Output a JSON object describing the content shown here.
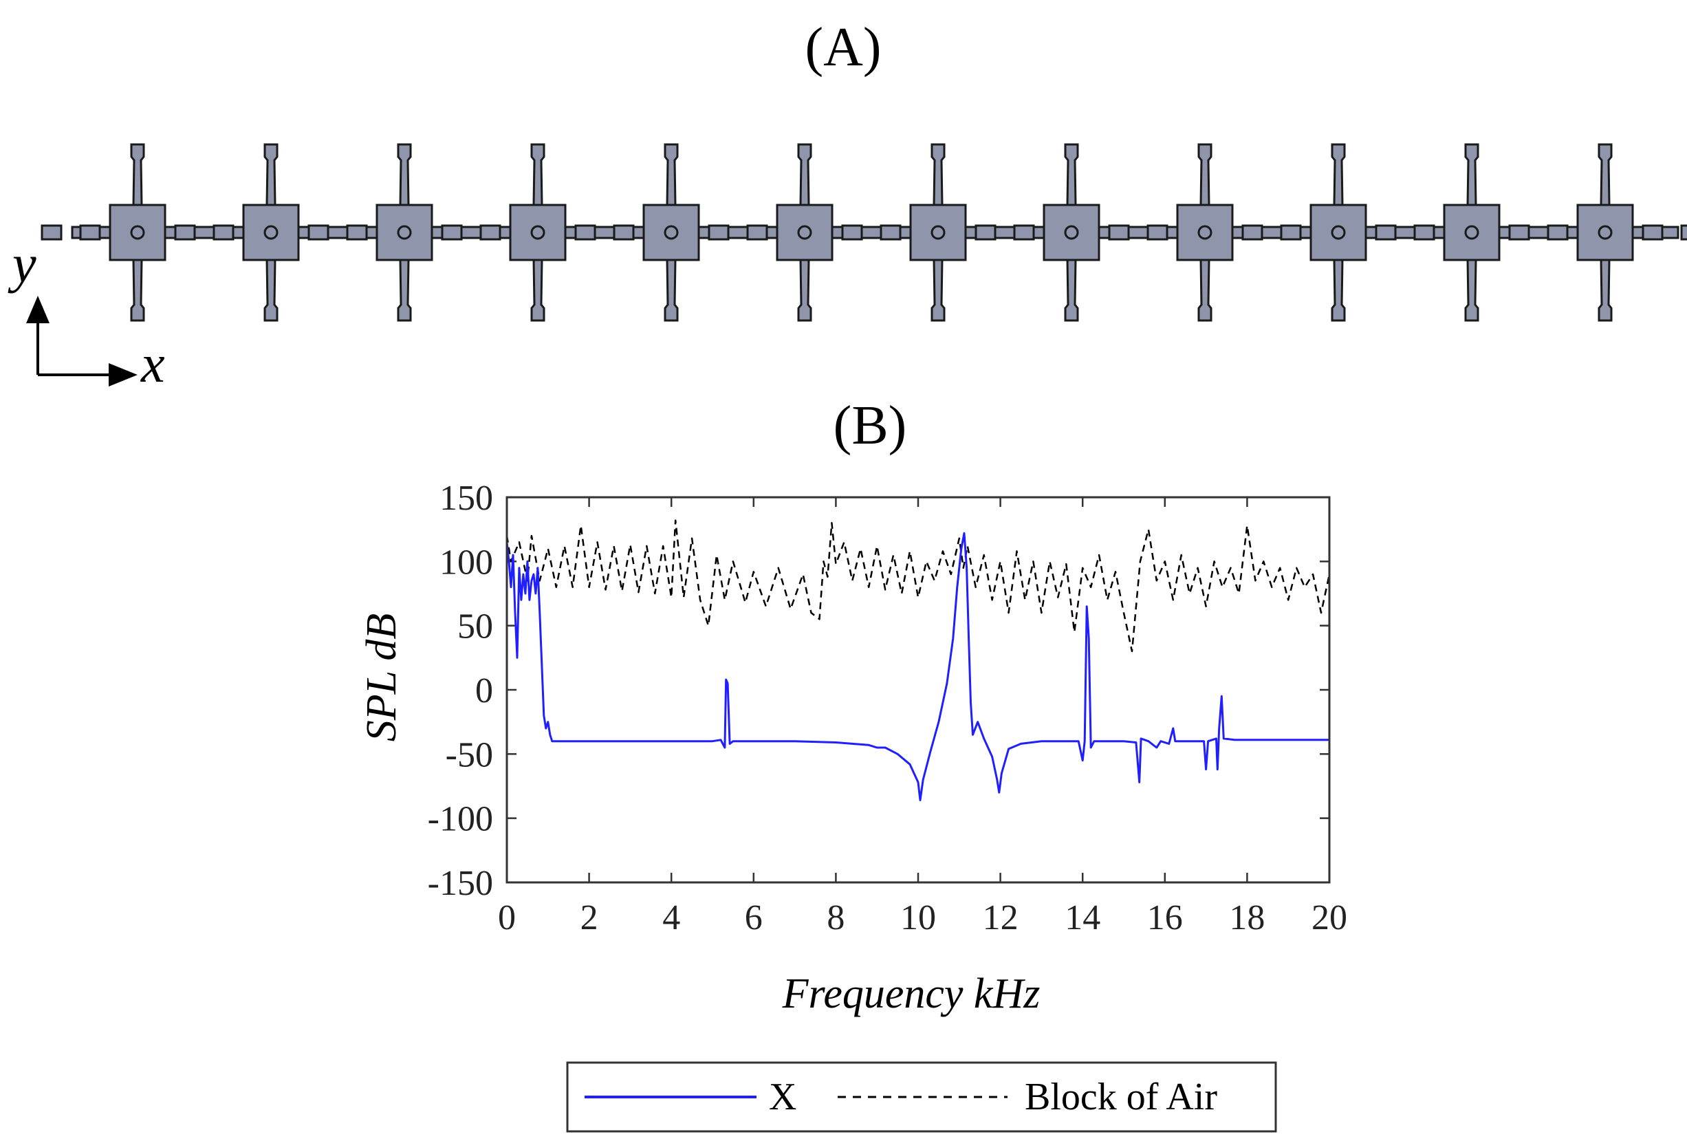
{
  "panel_a": {
    "label": "(A)",
    "cell_count": 12,
    "axis_y_label": "y",
    "axis_x_label": "x",
    "cell_fill": "#8f95aa",
    "cell_stroke": "#1a1a1a"
  },
  "chart_data": {
    "type": "line",
    "panel_label": "(B)",
    "xlabel": "Frequency kHz",
    "ylabel": "SPL dB",
    "xlim": [
      0,
      20
    ],
    "ylim": [
      -150,
      150
    ],
    "xticks": [
      0,
      2,
      4,
      6,
      8,
      10,
      12,
      14,
      16,
      18,
      20
    ],
    "yticks": [
      150,
      100,
      50,
      0,
      -50,
      -100,
      -150
    ],
    "grid": false,
    "legend_position": "bottom-center",
    "series": [
      {
        "name": "X",
        "color": "#1f1fff",
        "style": "solid",
        "points": [
          [
            0.0,
            115
          ],
          [
            0.05,
            100
          ],
          [
            0.1,
            80
          ],
          [
            0.15,
            105
          ],
          [
            0.2,
            60
          ],
          [
            0.25,
            25
          ],
          [
            0.3,
            95
          ],
          [
            0.35,
            70
          ],
          [
            0.4,
            90
          ],
          [
            0.45,
            75
          ],
          [
            0.5,
            100
          ],
          [
            0.55,
            70
          ],
          [
            0.6,
            85
          ],
          [
            0.65,
            90
          ],
          [
            0.7,
            75
          ],
          [
            0.75,
            95
          ],
          [
            0.8,
            60
          ],
          [
            0.85,
            20
          ],
          [
            0.9,
            -20
          ],
          [
            0.95,
            -30
          ],
          [
            1.0,
            -25
          ],
          [
            1.05,
            -35
          ],
          [
            1.1,
            -40
          ],
          [
            1.5,
            -40
          ],
          [
            2.0,
            -40
          ],
          [
            3.0,
            -40
          ],
          [
            4.0,
            -40
          ],
          [
            5.0,
            -40
          ],
          [
            5.2,
            -39
          ],
          [
            5.3,
            -45
          ],
          [
            5.33,
            8
          ],
          [
            5.37,
            5
          ],
          [
            5.42,
            -42
          ],
          [
            5.5,
            -40
          ],
          [
            6.0,
            -40
          ],
          [
            7.0,
            -40
          ],
          [
            8.0,
            -41
          ],
          [
            8.8,
            -43
          ],
          [
            9.0,
            -45
          ],
          [
            9.2,
            -45
          ],
          [
            9.5,
            -50
          ],
          [
            9.8,
            -58
          ],
          [
            10.0,
            -72
          ],
          [
            10.05,
            -86
          ],
          [
            10.12,
            -70
          ],
          [
            10.3,
            -48
          ],
          [
            10.5,
            -25
          ],
          [
            10.7,
            5
          ],
          [
            10.85,
            40
          ],
          [
            10.95,
            80
          ],
          [
            11.05,
            110
          ],
          [
            11.12,
            122
          ],
          [
            11.18,
            95
          ],
          [
            11.23,
            40
          ],
          [
            11.28,
            -10
          ],
          [
            11.33,
            -35
          ],
          [
            11.45,
            -25
          ],
          [
            11.6,
            -38
          ],
          [
            11.8,
            -52
          ],
          [
            11.92,
            -70
          ],
          [
            11.97,
            -80
          ],
          [
            12.03,
            -65
          ],
          [
            12.2,
            -46
          ],
          [
            12.5,
            -42
          ],
          [
            13.0,
            -40
          ],
          [
            13.5,
            -40
          ],
          [
            13.9,
            -40
          ],
          [
            14.0,
            -55
          ],
          [
            14.05,
            -40
          ],
          [
            14.1,
            65
          ],
          [
            14.15,
            40
          ],
          [
            14.2,
            -45
          ],
          [
            14.28,
            -40
          ],
          [
            15.0,
            -40
          ],
          [
            15.3,
            -41
          ],
          [
            15.38,
            -72
          ],
          [
            15.42,
            -38
          ],
          [
            15.6,
            -40
          ],
          [
            15.8,
            -45
          ],
          [
            15.9,
            -40
          ],
          [
            16.1,
            -42
          ],
          [
            16.2,
            -30
          ],
          [
            16.25,
            -40
          ],
          [
            16.5,
            -40
          ],
          [
            16.95,
            -40
          ],
          [
            17.0,
            -62
          ],
          [
            17.05,
            -40
          ],
          [
            17.25,
            -38
          ],
          [
            17.28,
            -62
          ],
          [
            17.32,
            -30
          ],
          [
            17.38,
            -5
          ],
          [
            17.43,
            -38
          ],
          [
            17.7,
            -39
          ],
          [
            18.5,
            -39
          ],
          [
            19.5,
            -39
          ],
          [
            20.0,
            -39
          ]
        ]
      },
      {
        "name": "Block of Air",
        "color": "#000000",
        "style": "dashed",
        "points": [
          [
            0.0,
            120
          ],
          [
            0.1,
            100
          ],
          [
            0.3,
            115
          ],
          [
            0.5,
            85
          ],
          [
            0.6,
            120
          ],
          [
            0.8,
            85
          ],
          [
            1.0,
            110
          ],
          [
            1.2,
            80
          ],
          [
            1.4,
            112
          ],
          [
            1.6,
            80
          ],
          [
            1.8,
            128
          ],
          [
            2.0,
            80
          ],
          [
            2.2,
            115
          ],
          [
            2.4,
            78
          ],
          [
            2.6,
            112
          ],
          [
            2.8,
            77
          ],
          [
            3.0,
            113
          ],
          [
            3.2,
            76
          ],
          [
            3.4,
            112
          ],
          [
            3.6,
            75
          ],
          [
            3.8,
            112
          ],
          [
            4.0,
            72
          ],
          [
            4.1,
            132
          ],
          [
            4.3,
            72
          ],
          [
            4.5,
            118
          ],
          [
            4.7,
            70
          ],
          [
            4.9,
            50
          ],
          [
            5.1,
            105
          ],
          [
            5.3,
            70
          ],
          [
            5.5,
            100
          ],
          [
            5.8,
            68
          ],
          [
            6.0,
            92
          ],
          [
            6.3,
            65
          ],
          [
            6.6,
            95
          ],
          [
            6.9,
            63
          ],
          [
            7.2,
            90
          ],
          [
            7.4,
            60
          ],
          [
            7.6,
            55
          ],
          [
            7.7,
            100
          ],
          [
            7.8,
            88
          ],
          [
            7.9,
            130
          ],
          [
            8.0,
            98
          ],
          [
            8.2,
            115
          ],
          [
            8.4,
            85
          ],
          [
            8.6,
            110
          ],
          [
            8.8,
            80
          ],
          [
            9.0,
            112
          ],
          [
            9.2,
            78
          ],
          [
            9.4,
            105
          ],
          [
            9.6,
            75
          ],
          [
            9.8,
            108
          ],
          [
            10.0,
            72
          ],
          [
            10.2,
            100
          ],
          [
            10.4,
            85
          ],
          [
            10.6,
            108
          ],
          [
            10.8,
            90
          ],
          [
            11.0,
            118
          ],
          [
            11.1,
            95
          ],
          [
            11.2,
            112
          ],
          [
            11.4,
            80
          ],
          [
            11.6,
            105
          ],
          [
            11.8,
            70
          ],
          [
            12.0,
            100
          ],
          [
            12.2,
            60
          ],
          [
            12.4,
            108
          ],
          [
            12.6,
            70
          ],
          [
            12.8,
            100
          ],
          [
            13.0,
            60
          ],
          [
            13.2,
            100
          ],
          [
            13.4,
            72
          ],
          [
            13.6,
            98
          ],
          [
            13.8,
            45
          ],
          [
            14.0,
            95
          ],
          [
            14.2,
            80
          ],
          [
            14.4,
            105
          ],
          [
            14.6,
            70
          ],
          [
            14.8,
            92
          ],
          [
            15.0,
            60
          ],
          [
            15.2,
            30
          ],
          [
            15.4,
            100
          ],
          [
            15.6,
            125
          ],
          [
            15.8,
            85
          ],
          [
            16.0,
            100
          ],
          [
            16.2,
            70
          ],
          [
            16.4,
            105
          ],
          [
            16.6,
            75
          ],
          [
            16.8,
            95
          ],
          [
            17.0,
            65
          ],
          [
            17.2,
            100
          ],
          [
            17.4,
            80
          ],
          [
            17.6,
            95
          ],
          [
            17.8,
            75
          ],
          [
            18.0,
            128
          ],
          [
            18.2,
            85
          ],
          [
            18.4,
            100
          ],
          [
            18.6,
            80
          ],
          [
            18.8,
            95
          ],
          [
            19.0,
            70
          ],
          [
            19.2,
            95
          ],
          [
            19.4,
            80
          ],
          [
            19.6,
            90
          ],
          [
            19.8,
            60
          ],
          [
            20.0,
            90
          ]
        ]
      }
    ]
  }
}
